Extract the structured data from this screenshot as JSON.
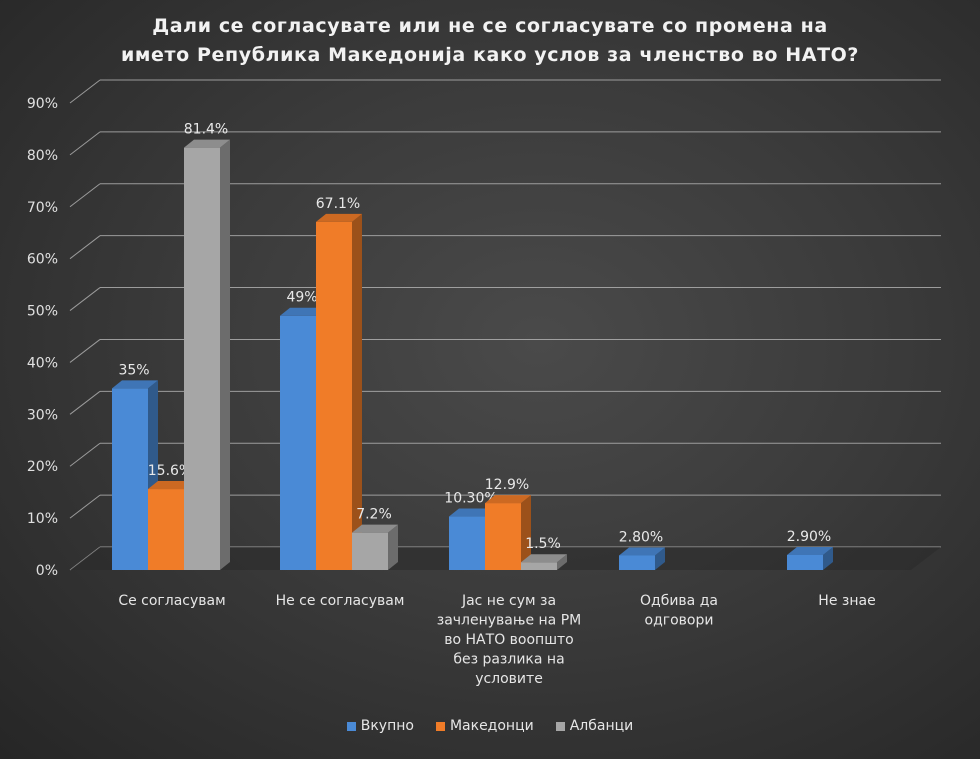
{
  "chart_data": {
    "type": "bar",
    "title_lines": [
      "Дали се согласувате или не се согласувате со промена на",
      "името Република Македонија како услов за членство во НАТО?"
    ],
    "categories": [
      [
        "Се согласувам"
      ],
      [
        "Не се согласувам"
      ],
      [
        "Јас не сум за",
        "зачленување на РМ",
        "во НАТО воопшто",
        "без разлика на",
        "условите"
      ],
      [
        "Одбива да",
        "одговори"
      ],
      [
        "Не знае"
      ]
    ],
    "series": [
      {
        "name": "Вкупно",
        "color": "#4a8ad6",
        "values": [
          35,
          49,
          10.3,
          2.8,
          2.9
        ],
        "labels": [
          "35%",
          "49%",
          "10.30%",
          "2.80%",
          "2.90%"
        ]
      },
      {
        "name": "Македонци",
        "color": "#f07c28",
        "values": [
          15.6,
          67.1,
          12.9,
          null,
          null
        ],
        "labels": [
          "15.6%",
          "67.1%",
          "12.9%",
          null,
          null
        ]
      },
      {
        "name": "Албанци",
        "color": "#a6a6a6",
        "values": [
          81.4,
          7.2,
          1.5,
          null,
          null
        ],
        "labels": [
          "81.4%",
          "7.2%",
          "1.5%",
          null,
          null
        ]
      }
    ],
    "ylim": [
      0,
      90
    ],
    "yticks": [
      0,
      10,
      20,
      30,
      40,
      50,
      60,
      70,
      80,
      90
    ],
    "ytick_labels": [
      "0%",
      "10%",
      "20%",
      "30%",
      "40%",
      "50%",
      "60%",
      "70%",
      "80%",
      "90%"
    ],
    "grid": true,
    "legend_position": "bottom"
  }
}
